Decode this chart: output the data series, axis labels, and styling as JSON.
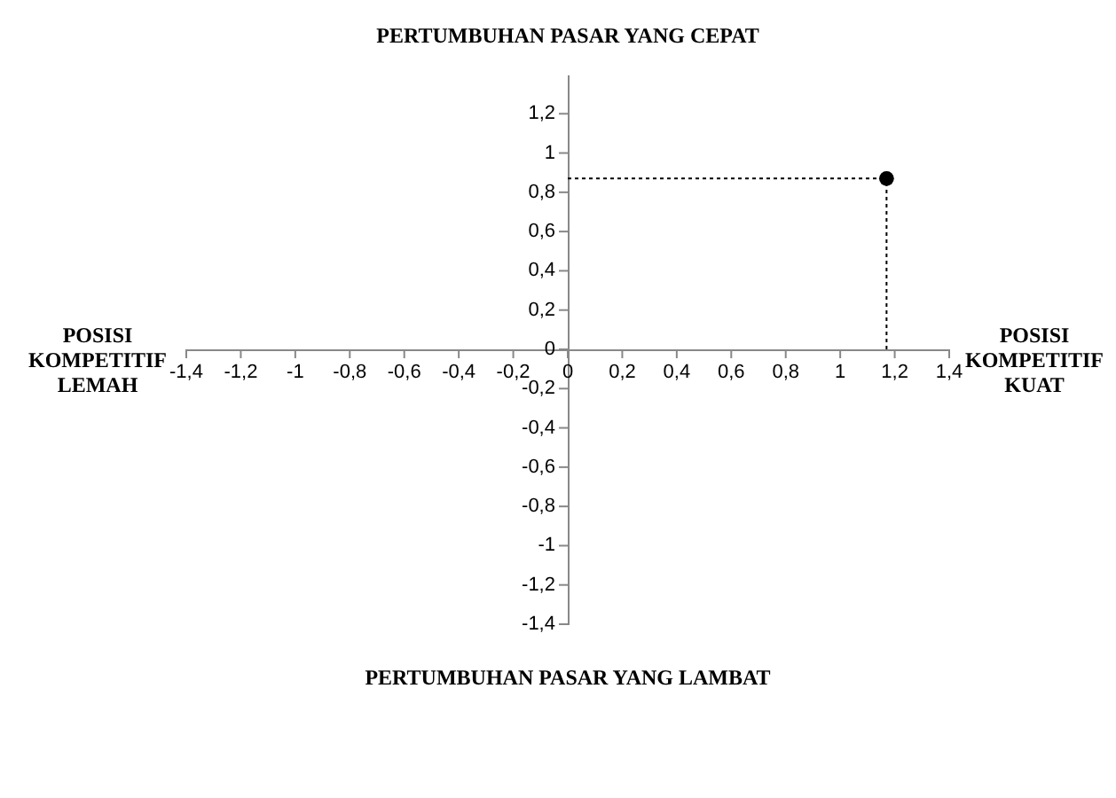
{
  "chart_data": {
    "type": "scatter",
    "x": [
      1.17
    ],
    "values": [
      0.87
    ],
    "color": "#000000",
    "marker": "circle",
    "errors": [
      [
        0,
        0.87
      ]
    ],
    "xerrors": [
      [
        0,
        1.17
      ]
    ],
    "line_style": "dotted",
    "xlim": [
      -1.4,
      1.4
    ],
    "ylim": [
      -1.4,
      1.4
    ],
    "xticks": [
      {
        "value": -1.4,
        "label": "-1,4"
      },
      {
        "value": -1.2,
        "label": "-1,2"
      },
      -1,
      {
        "value": -0.8,
        "label": "-0,8"
      },
      {
        "value": -0.6,
        "label": "-0,6"
      },
      {
        "value": -0.4,
        "label": "-0,4"
      },
      {
        "value": -0.2,
        "label": "-0,2"
      },
      0,
      {
        "value": 0.2,
        "label": "0,2"
      },
      {
        "value": 0.4,
        "label": "0,4"
      },
      {
        "value": 0.6,
        "label": "0,6"
      },
      {
        "value": 0.8,
        "label": "0,8"
      },
      1,
      {
        "value": 1.2,
        "label": "1,2"
      },
      {
        "value": 1.4,
        "label": "1,4"
      }
    ],
    "yticks": [
      {
        "value": -1.4,
        "label": "-1,4"
      },
      {
        "value": -1.2,
        "label": "-1,2"
      },
      -1,
      {
        "value": -0.8,
        "label": "-0,8"
      },
      {
        "value": -0.6,
        "label": "-0,6"
      },
      {
        "value": -0.4,
        "label": "-0,4"
      },
      {
        "value": -0.2,
        "label": "-0,2"
      },
      0,
      {
        "value": 0.2,
        "label": "0,2"
      },
      {
        "value": 0.4,
        "label": "0,4"
      },
      {
        "value": 0.6,
        "label": "0,6"
      },
      {
        "value": 0.8,
        "label": "0,8"
      },
      1,
      {
        "value": 1.2,
        "label": "1,2"
      }
    ],
    "grid": false,
    "annotations": [
      "PERTUMBUHAN PASAR YANG CEPAT",
      "POSISI\nKOMPETITIF\nLEMAH",
      "POSISI\nKOMPETITIF\nKUAT",
      "PERTUMBUHAN PASAR YANG LAMBAT"
    ]
  }
}
